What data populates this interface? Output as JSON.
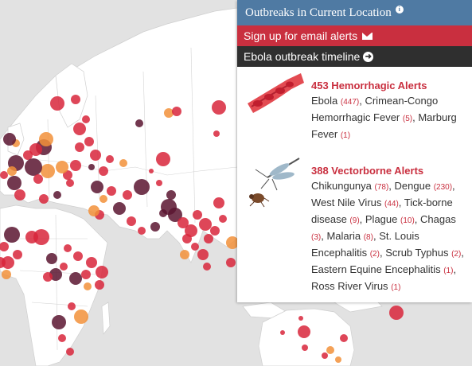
{
  "panel": {
    "title": "Outbreaks in Current Location",
    "email_label": "Sign up for email alerts",
    "timeline_label": "Ebola outbreak timeline"
  },
  "hemorrhagic": {
    "title": "453 Hemorrhagic Alerts",
    "items": [
      {
        "name": "Ebola",
        "count": "(447)"
      },
      {
        "name": "Crimean-Congo Hemorrhagic Fever",
        "count": "(5)"
      },
      {
        "name": "Marburg Fever",
        "count": "(1)"
      }
    ]
  },
  "vectorborne": {
    "title": "388 Vectorborne Alerts",
    "items": [
      {
        "name": "Chikungunya",
        "count": "(78)"
      },
      {
        "name": "Dengue",
        "count": "(230)"
      },
      {
        "name": "West Nile Virus",
        "count": "(44)"
      },
      {
        "name": "Tick-borne disease",
        "count": "(9)"
      },
      {
        "name": "Plague",
        "count": "(10)"
      },
      {
        "name": "Chagas",
        "count": "(3)"
      },
      {
        "name": "Malaria",
        "count": "(8)"
      },
      {
        "name": "St. Louis Encephalitis",
        "count": "(2)"
      },
      {
        "name": "Scrub Typhus",
        "count": "(2)"
      },
      {
        "name": "Eastern Equine Encephalitis",
        "count": "(1)"
      },
      {
        "name": "Ross River Virus",
        "count": "(1)"
      }
    ]
  },
  "colors": {
    "ocean": "#e2e2e2",
    "land": "#ffffff",
    "red": "#d8263b",
    "maroon": "#5a1530",
    "orange": "#f2913a",
    "header": "#4f7aa3",
    "email": "#c92f3f",
    "timeline": "#2f2f2f"
  },
  "icons": {
    "info": "info-icon",
    "email": "envelope-icon",
    "timeline": "arrow-circle-right-icon",
    "hemorrhagic": "blood-vessel-icon",
    "vectorborne": "mosquito-tick-icon"
  }
}
